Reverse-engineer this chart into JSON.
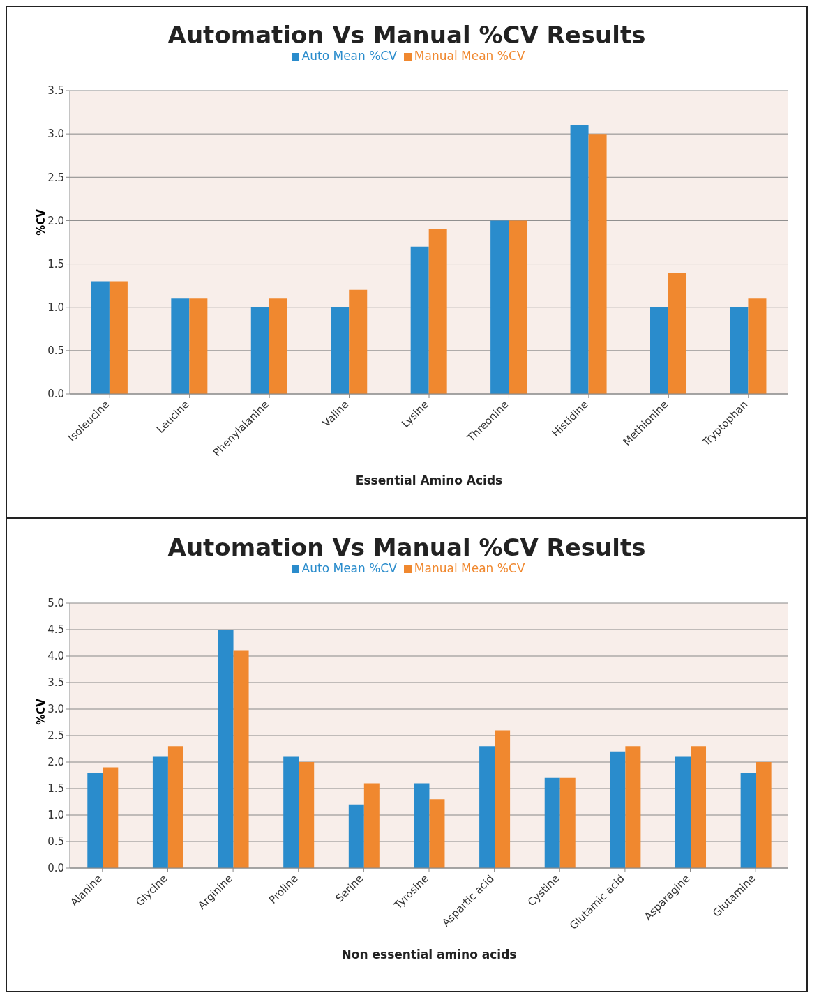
{
  "chart_data": [
    {
      "type": "bar",
      "title": "Automation Vs Manual %CV Results",
      "xlabel": "Essential  Amino Acids",
      "ylabel": "%CV",
      "categories": [
        "Isoleucine",
        "Leucine",
        "Phenylalanine",
        "Valine",
        "Lysine",
        "Threonine",
        "Histidine",
        "Methionine",
        "Tryptophan"
      ],
      "series": [
        {
          "name": "Auto Mean %CV",
          "color": "#2a8ccc",
          "values": [
            1.3,
            1.1,
            1.0,
            1.0,
            1.7,
            2.0,
            3.1,
            1.0,
            1.0
          ]
        },
        {
          "name": "Manual Mean %CV",
          "color": "#f0882f",
          "values": [
            1.3,
            1.1,
            1.1,
            1.2,
            1.9,
            2.0,
            3.0,
            1.4,
            1.1
          ]
        }
      ],
      "ylim": [
        0,
        3.5
      ],
      "yticks": [
        {
          "value": 0,
          "label": "0.0"
        },
        {
          "value": 0.5,
          "label": "0.5"
        },
        {
          "value": 1,
          "label": "1.0"
        },
        {
          "value": 1.5,
          "label": "1.5"
        },
        {
          "value": 2,
          "label": "2.0"
        },
        {
          "value": 2.5,
          "label": "2.5"
        },
        {
          "value": 3,
          "label": "3.0"
        },
        {
          "value": 3.5,
          "label": "3.5"
        }
      ],
      "grid": "y",
      "legend": "top"
    },
    {
      "type": "bar",
      "title": "Automation Vs Manual %CV Results",
      "xlabel": "Non essential amino acids",
      "ylabel": "%CV",
      "categories": [
        "Alanine",
        "Glycine",
        "Arginine",
        "Proline",
        "Serine",
        "Tyrosine",
        "Aspartic acid",
        "Cystine",
        "Glutamic acid",
        "Asparagine",
        "Glutamine"
      ],
      "series": [
        {
          "name": "Auto Mean %CV",
          "color": "#2a8ccc",
          "values": [
            1.8,
            2.1,
            4.5,
            2.1,
            1.2,
            1.6,
            2.3,
            1.7,
            2.2,
            2.1,
            1.8
          ]
        },
        {
          "name": "Manual Mean %CV",
          "color": "#f0882f",
          "values": [
            1.9,
            2.3,
            4.1,
            2.0,
            1.6,
            1.3,
            2.6,
            1.7,
            2.3,
            2.3,
            2.0
          ]
        }
      ],
      "ylim": [
        0,
        5
      ],
      "yticks": [
        {
          "value": 0,
          "label": "0.0"
        },
        {
          "value": 0.5,
          "label": "0.5"
        },
        {
          "value": 1,
          "label": "1.0"
        },
        {
          "value": 1.5,
          "label": "1.5"
        },
        {
          "value": 2,
          "label": "2.0"
        },
        {
          "value": 2.5,
          "label": "2.5"
        },
        {
          "value": 3,
          "label": "3.0"
        },
        {
          "value": 3.5,
          "label": "3.5"
        },
        {
          "value": 4,
          "label": "4.0"
        },
        {
          "value": 4.5,
          "label": "4.5"
        },
        {
          "value": 5,
          "label": "5.0"
        }
      ],
      "grid": "y",
      "legend": "top"
    }
  ]
}
